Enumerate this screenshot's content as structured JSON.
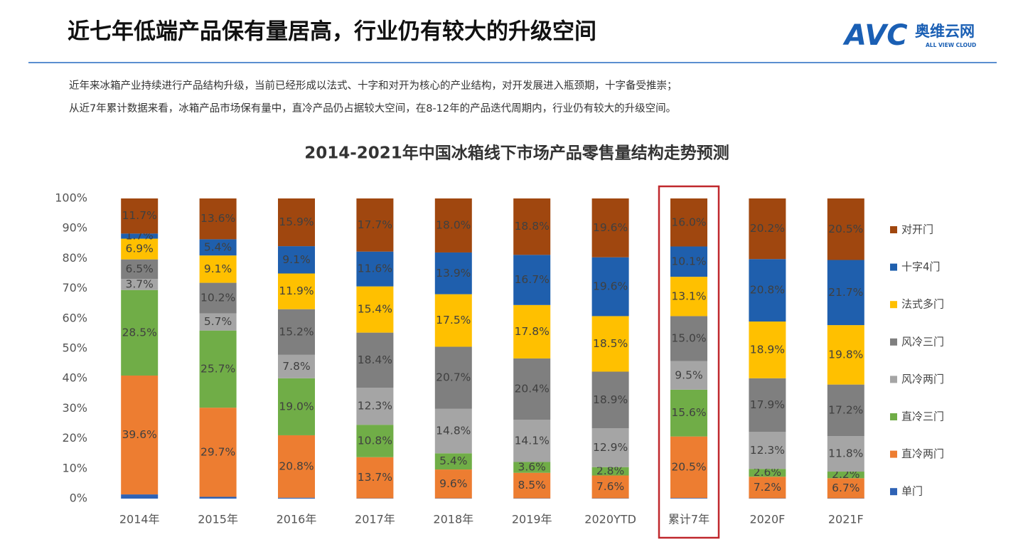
{
  "header": {
    "title": "近七年低端产品保有量居高，行业仍有较大的升级空间",
    "logo_mark": "AVC",
    "logo_name": "奥维云网",
    "logo_sub": "ALL VIEW CLOUD"
  },
  "description": [
    "近年来冰箱产业持续进行产品结构升级，当前已经形成以法式、十字和对开为核心的产业结构，对开发展进入瓶颈期，十字备受推崇；",
    "从近7年累计数据来看，冰箱产品市场保有量中，直冷产品仍占据较大空间，在8-12年的产品迭代周期内，行业仍有较大的升级空间。"
  ],
  "chart_data": {
    "type": "stacked_bar",
    "title": "2014-2021年中国冰箱线下市场产品零售量结构走势预测",
    "categories": [
      "2014年",
      "2015年",
      "2016年",
      "2017年",
      "2018年",
      "2019年",
      "2020YTD",
      "累计7年",
      "2020F",
      "2021F"
    ],
    "ylim": [
      0,
      100
    ],
    "yticks": [
      {
        "value": 0,
        "label": "0%"
      },
      {
        "value": 10,
        "label": "10%"
      },
      {
        "value": 20,
        "label": "20%"
      },
      {
        "value": 30,
        "label": "30%"
      },
      {
        "value": 40,
        "label": "40%"
      },
      {
        "value": 50,
        "label": "50%"
      },
      {
        "value": 60,
        "label": "60%"
      },
      {
        "value": 70,
        "label": "70%"
      },
      {
        "value": 80,
        "label": "80%"
      },
      {
        "value": 90,
        "label": "90%"
      },
      {
        "value": 100,
        "label": "100%"
      }
    ],
    "legend": "right",
    "series": [
      {
        "name": "单门",
        "color": "#2e62b5",
        "values": [
          1.4,
          0.6,
          0.3,
          0.1,
          0.1,
          0.1,
          0.1,
          0.2,
          0.1,
          0.1
        ],
        "value_labels": [
          null,
          null,
          null,
          null,
          null,
          null,
          null,
          null,
          null,
          null
        ]
      },
      {
        "name": "直冷两门",
        "color": "#ed7d31",
        "values": [
          39.6,
          29.7,
          20.8,
          13.7,
          9.6,
          8.5,
          7.6,
          20.5,
          7.2,
          6.7
        ],
        "value_labels": [
          "39.6%",
          "29.7%",
          "20.8%",
          "13.7%",
          "9.6%",
          "8.5%",
          "7.6%",
          "20.5%",
          "7.2%",
          "6.7%"
        ]
      },
      {
        "name": "直冷三门",
        "color": "#70ad47",
        "values": [
          28.5,
          25.7,
          19.0,
          10.8,
          5.4,
          3.6,
          2.8,
          15.6,
          2.6,
          2.2
        ],
        "value_labels": [
          "28.5%",
          "25.7%",
          "19.0%",
          "10.8%",
          "5.4%",
          "3.6%",
          "2.8%",
          "15.6%",
          "2.6%",
          "2.2%"
        ]
      },
      {
        "name": "风冷两门",
        "color": "#a5a5a5",
        "values": [
          3.7,
          5.7,
          7.8,
          12.3,
          14.8,
          14.1,
          12.9,
          9.5,
          12.3,
          11.8
        ],
        "value_labels": [
          "3.7%",
          "5.7%",
          "7.8%",
          "12.3%",
          "14.8%",
          "14.1%",
          "12.9%",
          "9.5%",
          "12.3%",
          "11.8%"
        ]
      },
      {
        "name": "风冷三门",
        "color": "#7f7f7f",
        "values": [
          6.5,
          10.2,
          15.2,
          18.4,
          20.7,
          20.4,
          18.9,
          15.0,
          17.9,
          17.2
        ],
        "value_labels": [
          "6.5%",
          "10.2%",
          "15.2%",
          "18.4%",
          "20.7%",
          "20.4%",
          "18.9%",
          "15.0%",
          "17.9%",
          "17.2%"
        ]
      },
      {
        "name": "法式多门",
        "color": "#ffc000",
        "values": [
          6.9,
          9.1,
          11.9,
          15.4,
          17.5,
          17.8,
          18.5,
          13.1,
          18.9,
          19.8
        ],
        "value_labels": [
          "6.9%",
          "9.1%",
          "11.9%",
          "15.4%",
          "17.5%",
          "17.8%",
          "18.5%",
          "13.1%",
          "18.9%",
          "19.8%"
        ]
      },
      {
        "name": "十字4门",
        "color": "#1f5fad",
        "values": [
          1.7,
          5.4,
          9.1,
          11.6,
          13.9,
          16.7,
          19.6,
          10.1,
          20.8,
          21.7
        ],
        "value_labels": [
          "1.7%",
          "5.4%",
          "9.1%",
          "11.6%",
          "13.9%",
          "16.7%",
          "19.6%",
          "10.1%",
          "20.8%",
          "21.7%"
        ]
      },
      {
        "name": "对开门",
        "color": "#a0470f",
        "values": [
          11.7,
          13.6,
          15.9,
          17.7,
          18.0,
          18.8,
          19.6,
          16.0,
          20.2,
          20.5
        ],
        "value_labels": [
          "11.7%",
          "13.6%",
          "15.9%",
          "17.7%",
          "18.0%",
          "18.8%",
          "19.6%",
          "16.0%",
          "20.2%",
          "20.5%"
        ]
      }
    ]
  }
}
